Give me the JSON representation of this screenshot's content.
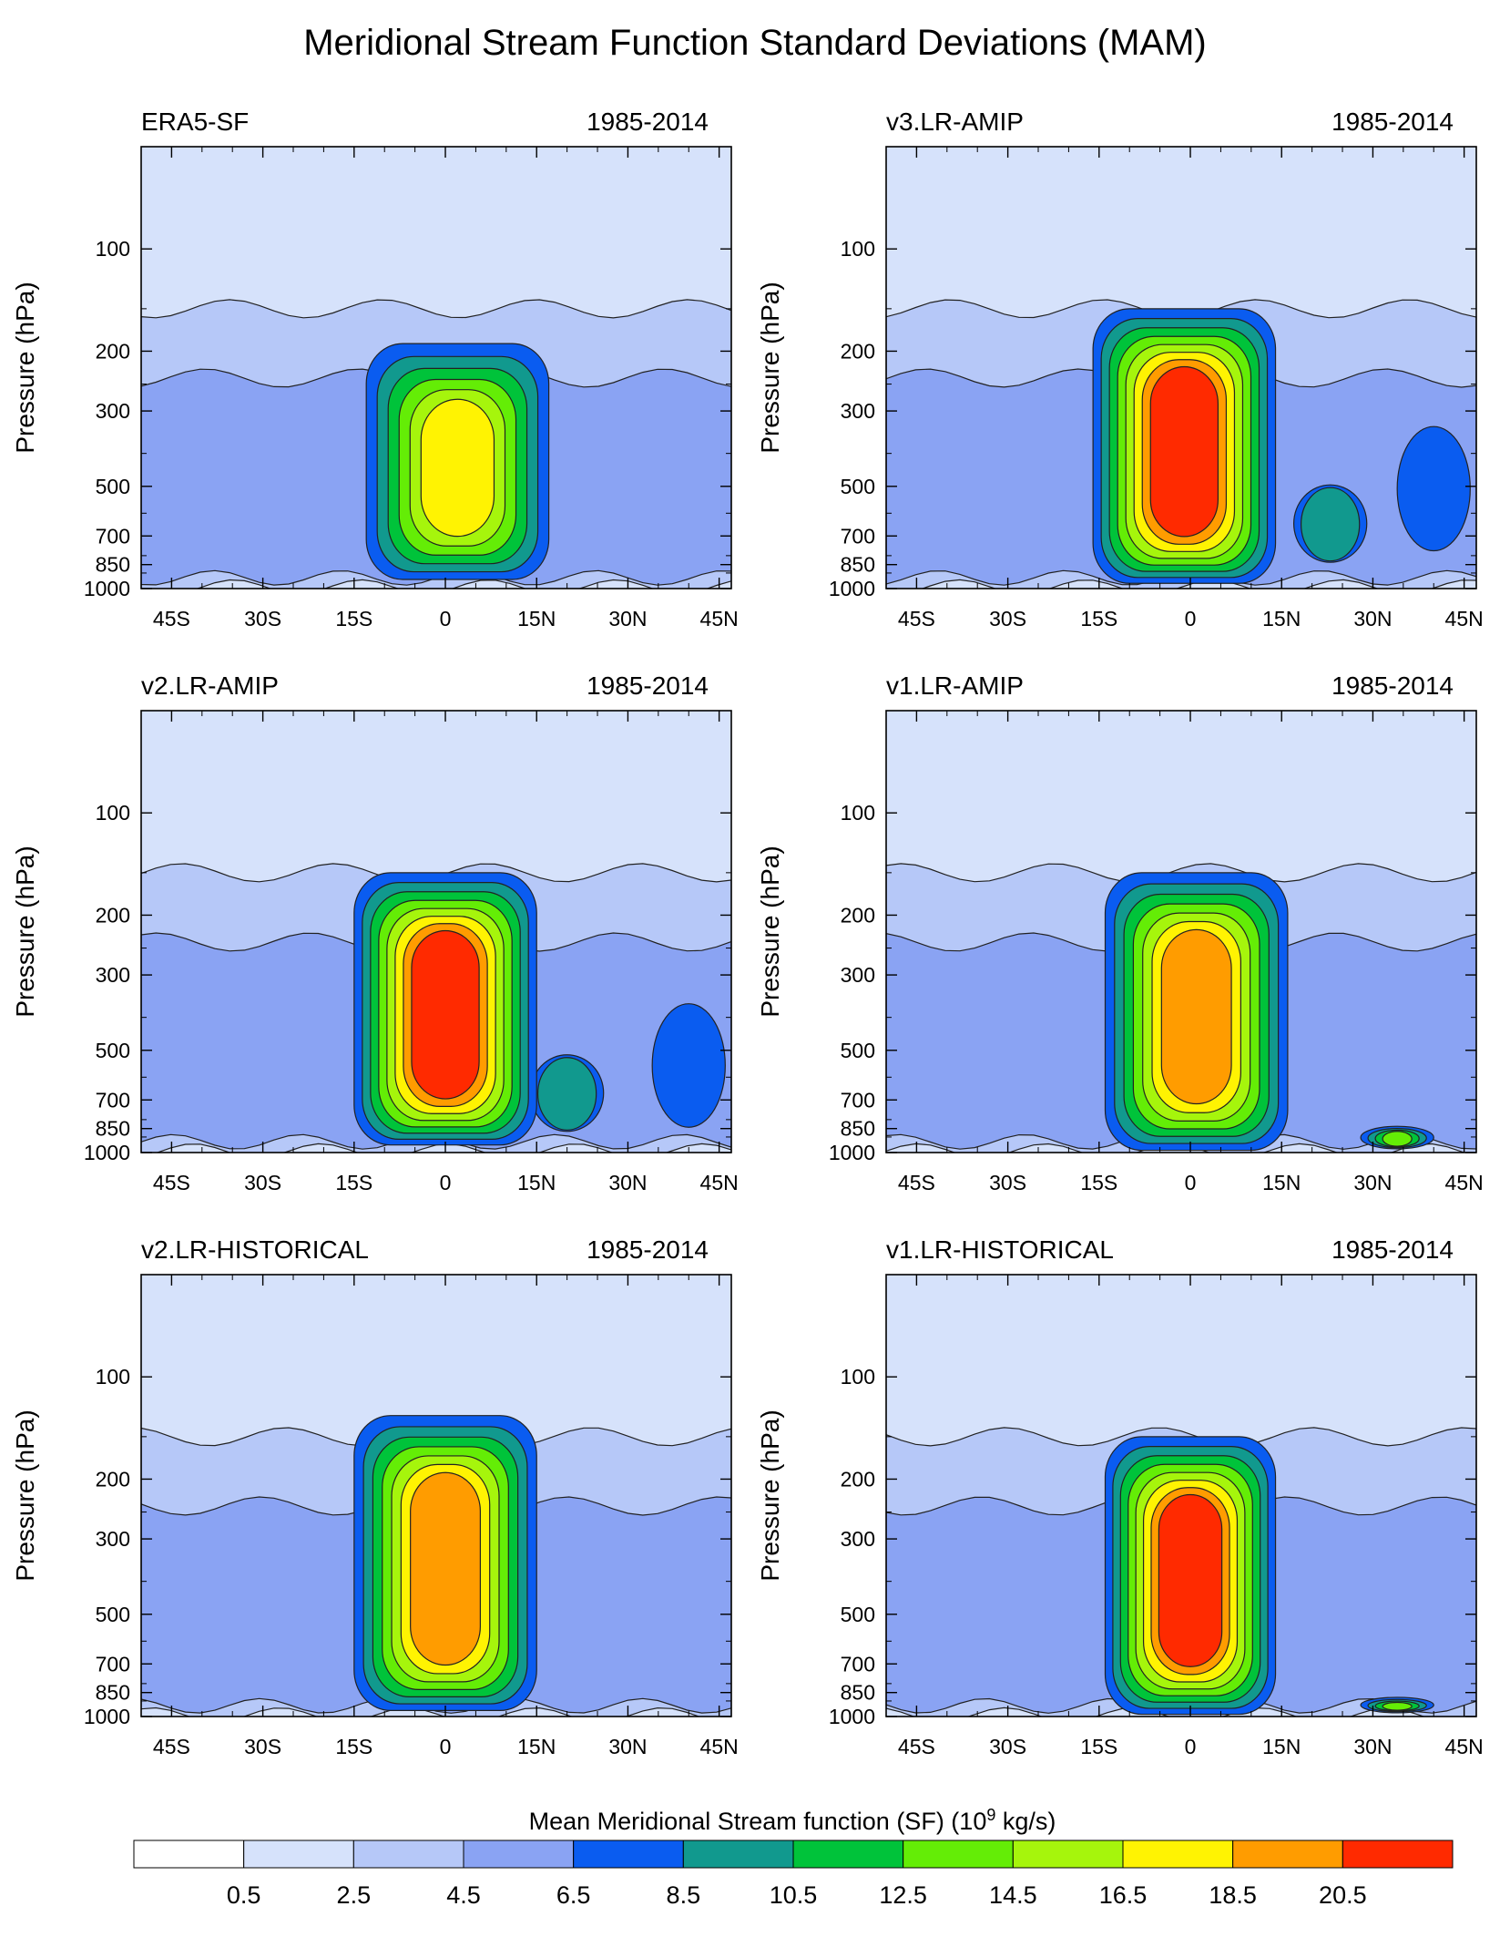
{
  "figure": {
    "title": "Meridional Stream Function Standard Deviations (MAM)"
  },
  "chart_data": {
    "type": "contour",
    "ylabel": "Pressure (hPa)",
    "yticks": [
      100,
      200,
      300,
      500,
      700,
      850,
      1000
    ],
    "ylim": [
      1000,
      50
    ],
    "xticks": [
      "45S",
      "30S",
      "15S",
      "0",
      "15N",
      "30N",
      "45N"
    ],
    "xlim": [
      -50,
      47
    ],
    "levels": [
      0.5,
      2.5,
      4.5,
      6.5,
      8.5,
      10.5,
      12.5,
      14.5,
      16.5,
      18.5,
      20.5
    ],
    "colors": [
      "#ffffff",
      "#d6e2fb",
      "#b6c8f8",
      "#8aa3f3",
      "#0a5cf0",
      "#11998e",
      "#00c33a",
      "#64ed06",
      "#a6f50c",
      "#fff302",
      "#ff9c00",
      "#ff2a00"
    ],
    "colorbar": {
      "label_prefix": "Mean Meridional Stream function (SF) (10",
      "label_exp": "9",
      "label_suffix": " kg/s)",
      "tick_labels": [
        "0.5",
        "2.5",
        "4.5",
        "6.5",
        "8.5",
        "10.5",
        "12.5",
        "14.5",
        "16.5",
        "18.5",
        "20.5"
      ]
    },
    "panels": [
      {
        "name": "ERA5-SF",
        "period": "1985-2014",
        "core": {
          "center_lat": 2,
          "half_width_deg": 15,
          "top_hpa": 190,
          "bottom_hpa": 940
        },
        "peak_value": 16.5,
        "side_lobes": [],
        "background": {
          "level_4_5_extent_deg": 50
        }
      },
      {
        "name": "v3.LR-AMIP",
        "period": "1985-2014",
        "core": {
          "center_lat": -1,
          "half_width_deg": 15,
          "top_hpa": 150,
          "bottom_hpa": 965
        },
        "peak_value": 20.5,
        "side_lobes": [
          {
            "center_lat": 23,
            "top_hpa": 480,
            "bottom_hpa": 850,
            "value": 8.5
          },
          {
            "center_lat": 40,
            "top_hpa": 320,
            "bottom_hpa": 790,
            "value": 6.5
          }
        ],
        "background": {
          "level_4_5_extent_deg": 50
        }
      },
      {
        "name": "v2.LR-AMIP",
        "period": "1985-2014",
        "core": {
          "center_lat": 0,
          "half_width_deg": 15,
          "top_hpa": 150,
          "bottom_hpa": 950
        },
        "peak_value": 20.5,
        "side_lobes": [
          {
            "center_lat": 20,
            "top_hpa": 500,
            "bottom_hpa": 880,
            "value": 8.5
          },
          {
            "center_lat": 40,
            "top_hpa": 350,
            "bottom_hpa": 860,
            "value": 6.5
          }
        ],
        "background": {
          "level_4_5_extent_deg": 50
        }
      },
      {
        "name": "v1.LR-AMIP",
        "period": "1985-2014",
        "core": {
          "center_lat": 1,
          "half_width_deg": 15,
          "top_hpa": 150,
          "bottom_hpa": 985
        },
        "peak_value": 18.5,
        "side_lobes": [
          {
            "center_lat": 34,
            "top_hpa": 820,
            "bottom_hpa": 985,
            "value": 12.5
          }
        ],
        "background": {
          "level_4_5_extent_deg": 50
        }
      },
      {
        "name": "v2.LR-HISTORICAL",
        "period": "1985-2014",
        "core": {
          "center_lat": 0,
          "half_width_deg": 15,
          "top_hpa": 130,
          "bottom_hpa": 960
        },
        "peak_value": 18.5,
        "side_lobes": [],
        "background": {
          "level_4_5_extent_deg": 50
        }
      },
      {
        "name": "v1.LR-HISTORICAL",
        "period": "1985-2014",
        "core": {
          "center_lat": 0,
          "half_width_deg": 14,
          "top_hpa": 150,
          "bottom_hpa": 985
        },
        "peak_value": 20.5,
        "side_lobes": [
          {
            "center_lat": 34,
            "top_hpa": 860,
            "bottom_hpa": 985,
            "value": 12.5
          }
        ],
        "background": {
          "level_4_5_extent_deg": 50
        }
      }
    ]
  }
}
